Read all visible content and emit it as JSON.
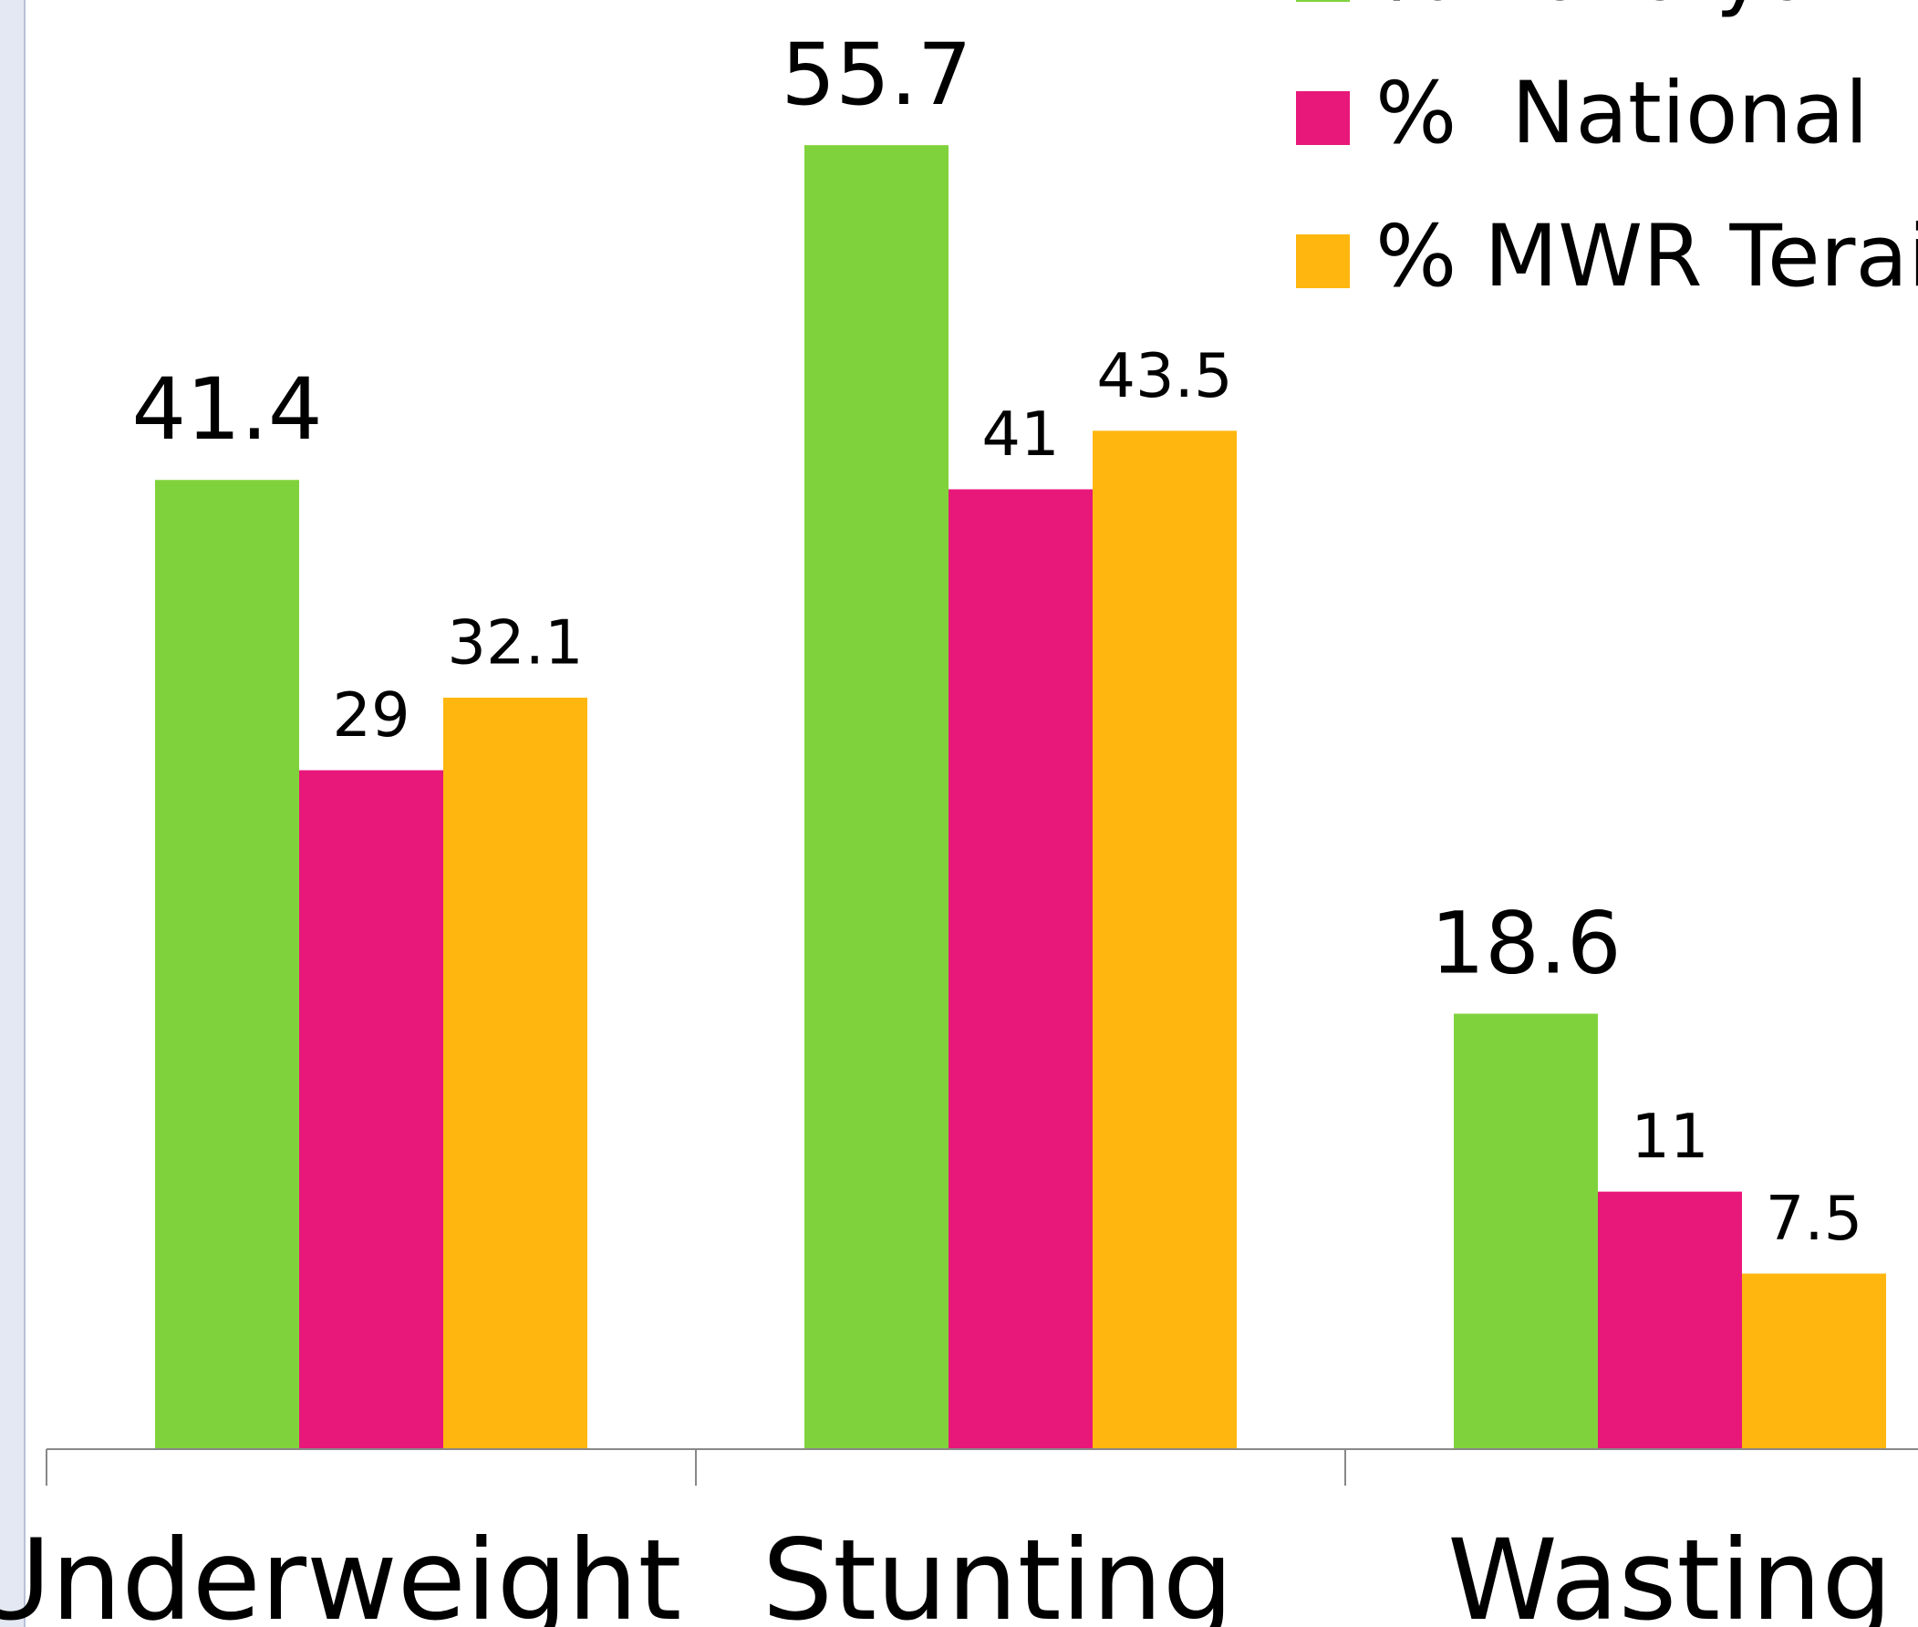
{
  "chart_data": {
    "type": "bar",
    "categories": [
      "Underweight",
      "Stunting",
      "Wasting"
    ],
    "series": [
      {
        "name": "% Kailalya",
        "color": "#80d23c",
        "values": [
          41.4,
          55.7,
          18.6
        ]
      },
      {
        "name": "%  National",
        "color": "#e8177a",
        "values": [
          29,
          41,
          11
        ]
      },
      {
        "name": "% MWR Terai",
        "color": "#ffb70f",
        "values": [
          32.1,
          43.5,
          7.5
        ]
      }
    ],
    "ylim": [
      0,
      61.9
    ]
  }
}
